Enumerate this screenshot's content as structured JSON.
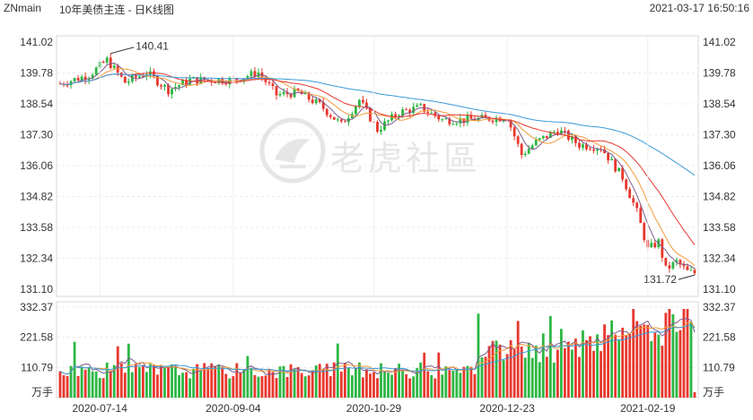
{
  "header": {
    "ticker": "ZNmain",
    "title": "10年美债主连 - 日K线图",
    "timestamp": "2021-03-17 16:50:16"
  },
  "watermark": {
    "text": "老虎社區"
  },
  "colors": {
    "up": "#2db744",
    "down": "#e8382e",
    "ma5": "#7d5a8c",
    "ma10": "#f29b3a",
    "ma20": "#e8382e",
    "ma60": "#3a9ad9"
  },
  "chart_data": [
    {
      "type": "candlestick",
      "title": "",
      "price_axis": {
        "ticks": [
          "141.02",
          "139.78",
          "138.54",
          "137.30",
          "136.06",
          "134.82",
          "133.58",
          "132.34",
          "131.10"
        ],
        "ylim": [
          131.1,
          141.02
        ]
      },
      "x_ticks": [
        {
          "label": "2020-07-14",
          "index": 11
        },
        {
          "label": "2020-09-04",
          "index": 48
        },
        {
          "label": "2020-10-29",
          "index": 87
        },
        {
          "label": "2020-12-23",
          "index": 124
        },
        {
          "label": "2021-02-19",
          "index": 163
        }
      ],
      "annotations": {
        "high": "140.41",
        "low": "131.72"
      },
      "grid": true,
      "legend": "none",
      "ohlc_note": "daily candles, Jul 2020 – Mar 2021"
    },
    {
      "type": "bar",
      "volume_axis": {
        "ticks": [
          "332.37",
          "221.58",
          "110.79"
        ],
        "unit": "万手",
        "ylim": [
          0,
          332.37
        ]
      }
    }
  ]
}
